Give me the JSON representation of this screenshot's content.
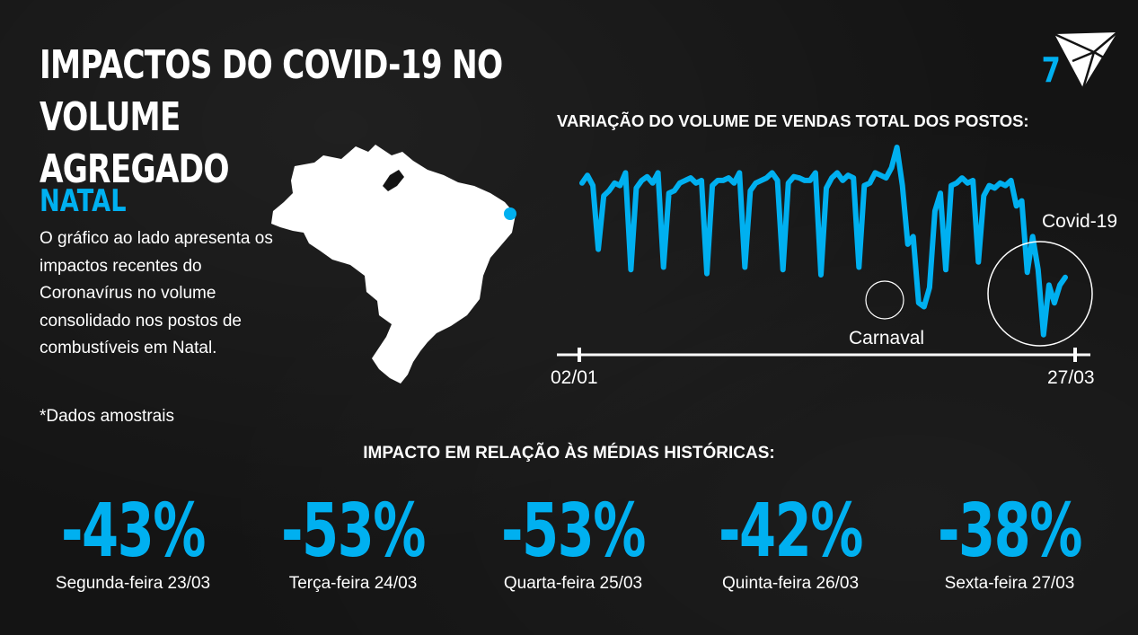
{
  "slide": {
    "title": "IMPACTOS DO COVID-19 NO VOLUME\nAGREGADO",
    "page_number": "7",
    "city": "NATAL",
    "description": "O gráfico ao lado apresenta os impactos recentes do Coronavírus no volume consolidado nos postos de combustíveis em Natal.",
    "note": "*Dados amostrais",
    "accent_color": "#00b0f0",
    "map_icon": "brazil-map-icon",
    "logo_icon": "triangle-logo-icon"
  },
  "chart": {
    "title": "VARIAÇÃO DO VOLUME DE VENDAS TOTAL DOS POSTOS:",
    "start_label": "02/01",
    "end_label": "27/03",
    "annotations": {
      "carnaval": "Carnaval",
      "covid": "Covid-19"
    }
  },
  "chart_data": {
    "type": "line",
    "title": "VARIAÇÃO DO VOLUME DE VENDAS TOTAL DOS POSTOS:",
    "x_range": [
      "02/01",
      "27/03"
    ],
    "series": [
      {
        "values": [
          0.72,
          0.78,
          0.7,
          0.2,
          0.62,
          0.66,
          0.72,
          0.7,
          0.8,
          0.04,
          0.68,
          0.74,
          0.77,
          0.72,
          0.8,
          0.06,
          0.64,
          0.66,
          0.72,
          0.74,
          0.76,
          0.72,
          0.74,
          0.01,
          0.7,
          0.74,
          0.74,
          0.76,
          0.72,
          0.8,
          0.06,
          0.66,
          0.72,
          0.74,
          0.76,
          0.8,
          0.74,
          0.04,
          0.72,
          0.77,
          0.76,
          0.74,
          0.74,
          0.8,
          0.0,
          0.68,
          0.76,
          0.8,
          0.74,
          0.78,
          0.76,
          0.06,
          0.7,
          0.72,
          0.8,
          0.78,
          0.76,
          0.84,
          1.0,
          0.7,
          0.24,
          0.3,
          -0.22,
          -0.25,
          -0.1,
          0.5,
          0.64,
          0.04,
          0.7,
          0.72,
          0.76,
          0.72,
          0.74,
          0.1,
          0.62,
          0.7,
          0.68,
          0.72,
          0.7,
          0.74,
          0.54,
          0.58,
          0.02,
          0.3,
          0.04,
          -0.47,
          -0.08,
          -0.22,
          -0.08,
          -0.02
        ]
      }
    ],
    "xlabel": "",
    "ylabel": ""
  },
  "impact": {
    "title": "IMPACTO EM RELAÇÃO ÀS MÉDIAS HISTÓRICAS:",
    "items": [
      {
        "value": "-43%",
        "label": "Segunda-feira 23/03"
      },
      {
        "value": "-53%",
        "label": "Terça-feira 24/03"
      },
      {
        "value": "-53%",
        "label": "Quarta-feira 25/03"
      },
      {
        "value": "-42%",
        "label": "Quinta-feira 26/03"
      },
      {
        "value": "-38%",
        "label": "Sexta-feira 27/03"
      }
    ]
  }
}
